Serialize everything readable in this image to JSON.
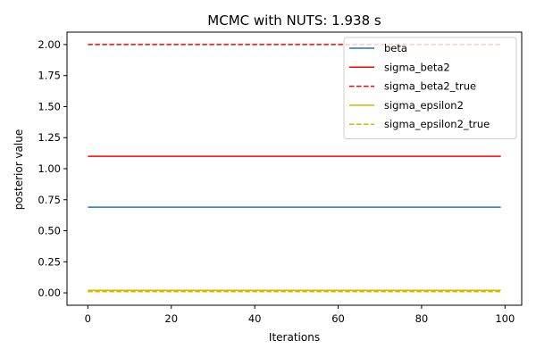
{
  "chart_data": {
    "type": "line",
    "title": "MCMC with NUTS: 1.938 s",
    "xlabel": "Iterations",
    "ylabel": "posterior value",
    "xlim": [
      -5,
      104
    ],
    "ylim": [
      -0.1,
      2.1
    ],
    "xticks": [
      0,
      20,
      40,
      60,
      80,
      100
    ],
    "yticks": [
      0.0,
      0.25,
      0.5,
      0.75,
      1.0,
      1.25,
      1.5,
      1.75,
      2.0
    ],
    "xtick_labels": [
      "0",
      "20",
      "40",
      "60",
      "80",
      "100"
    ],
    "ytick_labels": [
      "0.00",
      "0.25",
      "0.50",
      "0.75",
      "1.00",
      "1.25",
      "1.50",
      "1.75",
      "2.00"
    ],
    "grid": false,
    "legend_position": "top-right",
    "series": [
      {
        "name": "beta",
        "x": [
          0,
          99
        ],
        "y": [
          0.69,
          0.69
        ],
        "color": "#1f77b4",
        "style": "solid"
      },
      {
        "name": "sigma_beta2",
        "x": [
          0,
          99
        ],
        "y": [
          1.1,
          1.1
        ],
        "color": "#ff0000",
        "style": "solid"
      },
      {
        "name": "sigma_beta2_true",
        "x": [
          0,
          99
        ],
        "y": [
          2.0,
          2.0
        ],
        "color": "#ff0000",
        "style": "dashed"
      },
      {
        "name": "sigma_epsilon2",
        "x": [
          0,
          99
        ],
        "y": [
          0.02,
          0.02
        ],
        "color": "#d4b800",
        "style": "solid"
      },
      {
        "name": "sigma_epsilon2_true",
        "x": [
          0,
          99
        ],
        "y": [
          0.01,
          0.01
        ],
        "color": "#d4b800",
        "style": "dashed"
      }
    ]
  }
}
